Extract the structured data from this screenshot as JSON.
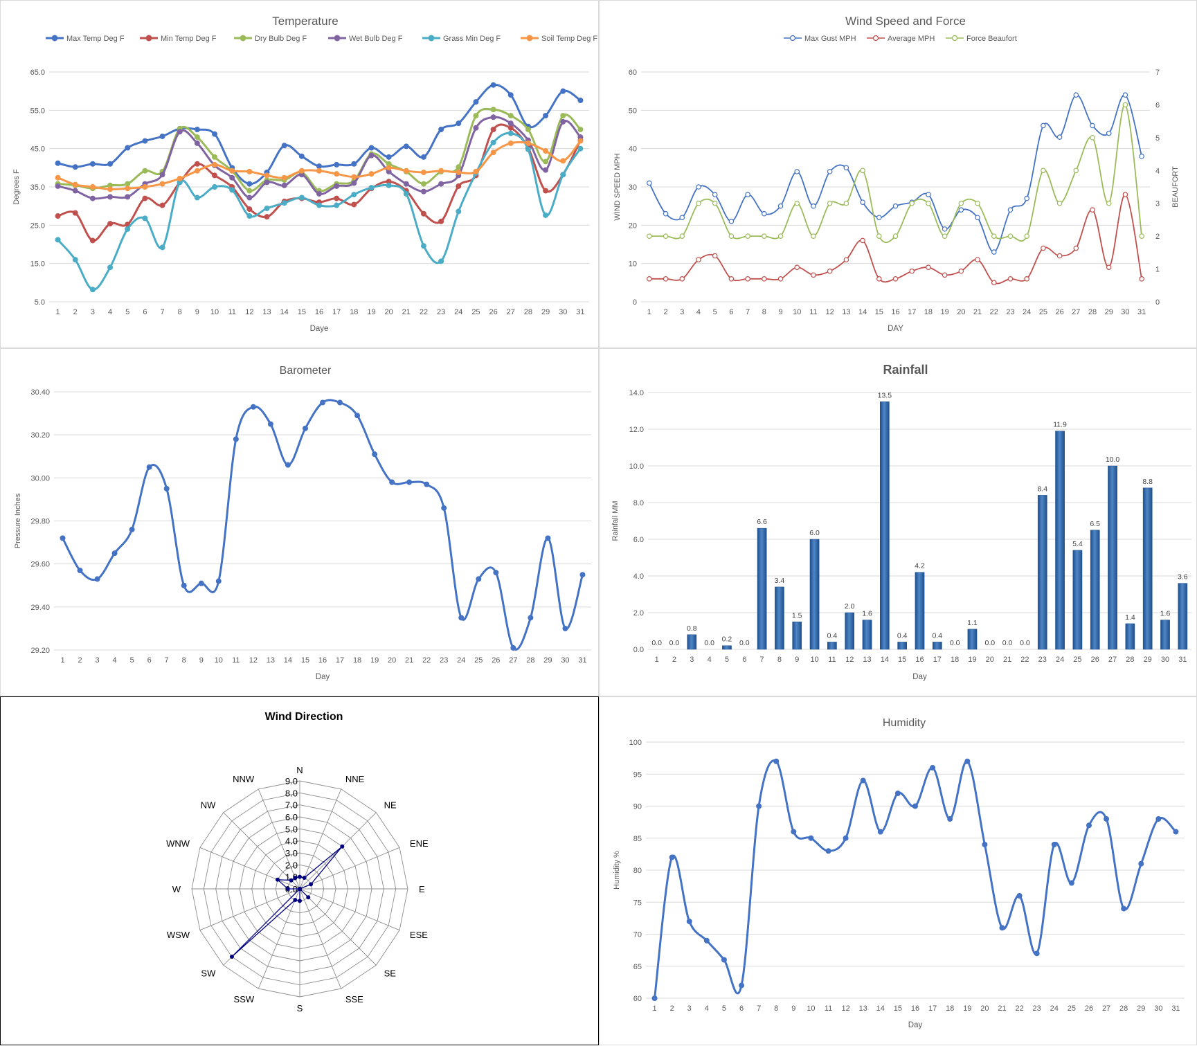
{
  "chart_data": [
    {
      "id": "temperature",
      "type": "line",
      "title": "Temperature",
      "xlabel": "Daye",
      "ylabel": "Degrees F",
      "ylim": [
        5,
        65
      ],
      "yticks": [
        "5.0",
        "15.0",
        "25.0",
        "35.0",
        "45.0",
        "55.0",
        "65.0"
      ],
      "grid": true,
      "legend": "top",
      "categories": [
        "1",
        "2",
        "3",
        "4",
        "5",
        "6",
        "7",
        "8",
        "9",
        "10",
        "11",
        "12",
        "13",
        "14",
        "15",
        "16",
        "17",
        "18",
        "19",
        "20",
        "21",
        "22",
        "23",
        "24",
        "25",
        "26",
        "27",
        "28",
        "29",
        "30",
        "31"
      ],
      "series": [
        {
          "name": "Max Temp Deg F",
          "color": "#4472C4",
          "values": [
            41.2,
            40.2,
            41.0,
            41.0,
            45.2,
            47.0,
            48.2,
            50.2,
            50.0,
            48.8,
            40.0,
            35.8,
            38.8,
            45.8,
            43.0,
            40.4,
            40.8,
            41.0,
            45.2,
            42.8,
            45.6,
            42.8,
            50.0,
            51.6,
            57.2,
            61.6,
            59.0,
            50.8,
            53.6,
            60.0,
            57.6
          ]
        },
        {
          "name": "Min Temp Deg F",
          "color": "#C0504D",
          "values": [
            27.4,
            28.2,
            21.0,
            25.4,
            25.2,
            32.0,
            30.2,
            36.2,
            41.0,
            38.0,
            35.0,
            29.2,
            27.2,
            31.2,
            32.0,
            31.0,
            32.0,
            30.4,
            34.6,
            36.4,
            34.0,
            28.0,
            26.0,
            35.2,
            38.0,
            50.0,
            50.4,
            45.2,
            34.0,
            38.2,
            47.2
          ]
        },
        {
          "name": "Dry Bulb Deg F",
          "color": "#9BBB59",
          "values": [
            35.8,
            35.4,
            34.6,
            35.4,
            35.8,
            39.2,
            39.0,
            50.2,
            48.0,
            42.8,
            39.2,
            34.0,
            36.8,
            36.8,
            38.8,
            34.0,
            35.8,
            36.6,
            43.6,
            41.0,
            39.0,
            35.8,
            39.0,
            40.2,
            53.6,
            55.2,
            53.6,
            50.0,
            41.6,
            53.6,
            50.0
          ]
        },
        {
          "name": "Wet Bulb Deg F",
          "color": "#8064A2",
          "values": [
            35.2,
            34.0,
            32.0,
            32.4,
            32.4,
            35.8,
            38.2,
            49.4,
            46.4,
            40.6,
            37.4,
            32.2,
            36.2,
            35.4,
            38.2,
            33.2,
            35.2,
            36.0,
            43.2,
            39.0,
            35.8,
            33.8,
            35.8,
            38.0,
            50.4,
            53.2,
            51.6,
            47.2,
            39.4,
            52.0,
            48.0
          ]
        },
        {
          "name": "Grass Min Deg F",
          "color": "#4BACC6",
          "values": [
            21.2,
            16.0,
            8.2,
            14.0,
            24.0,
            26.8,
            19.2,
            36.2,
            32.2,
            35.0,
            34.2,
            27.4,
            29.4,
            30.8,
            32.2,
            30.2,
            30.2,
            33.0,
            34.8,
            35.4,
            33.2,
            19.6,
            15.6,
            28.6,
            38.6,
            46.6,
            49.0,
            44.8,
            27.6,
            38.2,
            45.0
          ]
        },
        {
          "name": "Soil Temp Deg F",
          "color": "#F79646",
          "values": [
            37.4,
            35.6,
            35.0,
            34.4,
            34.6,
            35.0,
            35.8,
            37.2,
            39.2,
            40.8,
            39.2,
            39.0,
            38.0,
            37.4,
            39.2,
            39.2,
            38.4,
            37.6,
            38.4,
            40.0,
            39.2,
            38.8,
            39.2,
            38.8,
            39.0,
            44.0,
            46.4,
            46.4,
            44.4,
            41.8,
            47.0
          ]
        }
      ]
    },
    {
      "id": "wind_speed",
      "type": "line",
      "title": "Wind Speed and Force",
      "xlabel": "DAY",
      "ylabel": "WIND SPEED MPH",
      "y2label": "BEAUFORT",
      "ylim": [
        0,
        60
      ],
      "y2lim": [
        0,
        7
      ],
      "yticks": [
        "0",
        "10",
        "20",
        "30",
        "40",
        "50",
        "60"
      ],
      "y2ticks": [
        "0",
        "1",
        "2",
        "3",
        "4",
        "5",
        "6",
        "7"
      ],
      "grid": true,
      "legend": "top",
      "categories": [
        "1",
        "2",
        "3",
        "4",
        "5",
        "6",
        "7",
        "8",
        "9",
        "10",
        "11",
        "12",
        "13",
        "14",
        "15",
        "16",
        "17",
        "18",
        "19",
        "20",
        "21",
        "22",
        "23",
        "24",
        "25",
        "26",
        "27",
        "28",
        "29",
        "30",
        "31"
      ],
      "series": [
        {
          "name": "Max Gust MPH",
          "color": "#4472C4",
          "axis": "left",
          "values": [
            31,
            23,
            22,
            30,
            28,
            21,
            28,
            23,
            25,
            34,
            25,
            34,
            35,
            26,
            22,
            25,
            26,
            28,
            19,
            24,
            22,
            13,
            24,
            27,
            46,
            43,
            54,
            46,
            44,
            54,
            38
          ]
        },
        {
          "name": "Average MPH",
          "color": "#C0504D",
          "axis": "left",
          "values": [
            6,
            6,
            6,
            11,
            12,
            6,
            6,
            6,
            6,
            9,
            7,
            8,
            11,
            16,
            6,
            6,
            8,
            9,
            7,
            8,
            11,
            5,
            6,
            6,
            14,
            12,
            14,
            24,
            9,
            28,
            6
          ]
        },
        {
          "name": "Force Beaufort",
          "color": "#9BBB59",
          "axis": "right",
          "values": [
            2,
            2,
            2,
            3,
            3,
            2,
            2,
            2,
            2,
            3,
            2,
            3,
            3,
            4,
            2,
            2,
            3,
            3,
            2,
            3,
            3,
            2,
            2,
            2,
            4,
            3,
            4,
            5,
            3,
            6,
            2
          ]
        }
      ]
    },
    {
      "id": "barometer",
      "type": "line",
      "title": "Barometer",
      "xlabel": "Day",
      "ylabel": "Pressure Inches",
      "ylim": [
        29.2,
        30.4
      ],
      "yticks": [
        "29.20",
        "29.40",
        "29.60",
        "29.80",
        "30.00",
        "30.20",
        "30.40"
      ],
      "grid": true,
      "categories": [
        "1",
        "2",
        "3",
        "4",
        "5",
        "6",
        "7",
        "8",
        "9",
        "10",
        "11",
        "12",
        "13",
        "14",
        "15",
        "16",
        "17",
        "18",
        "19",
        "20",
        "21",
        "22",
        "23",
        "24",
        "25",
        "26",
        "27",
        "28",
        "29",
        "30",
        "31"
      ],
      "series": [
        {
          "name": "",
          "color": "#4472C4",
          "values": [
            29.72,
            29.57,
            29.53,
            29.65,
            29.76,
            30.05,
            29.95,
            29.5,
            29.51,
            29.52,
            30.18,
            30.33,
            30.25,
            30.06,
            30.23,
            30.35,
            30.35,
            30.29,
            30.11,
            29.98,
            29.98,
            29.97,
            29.86,
            29.35,
            29.53,
            29.56,
            29.21,
            29.35,
            29.72,
            29.3,
            29.55
          ]
        }
      ]
    },
    {
      "id": "rainfall",
      "type": "bar",
      "title": "Rainfall",
      "xlabel": "Day",
      "ylabel": "Rainfall MM",
      "ylim": [
        0,
        14
      ],
      "yticks": [
        "0.0",
        "2.0",
        "4.0",
        "6.0",
        "8.0",
        "10.0",
        "12.0",
        "14.0"
      ],
      "grid": true,
      "categories": [
        "1",
        "2",
        "3",
        "4",
        "5",
        "6",
        "7",
        "8",
        "9",
        "10",
        "11",
        "12",
        "13",
        "14",
        "15",
        "16",
        "17",
        "18",
        "19",
        "20",
        "21",
        "22",
        "23",
        "24",
        "25",
        "26",
        "27",
        "28",
        "29",
        "30",
        "31"
      ],
      "values": [
        0.0,
        0.0,
        0.8,
        0.0,
        0.2,
        0.0,
        6.6,
        3.4,
        1.5,
        6.0,
        0.4,
        2.0,
        1.6,
        13.5,
        0.4,
        4.2,
        0.4,
        0.0,
        1.1,
        0.0,
        0.0,
        0.0,
        8.4,
        11.9,
        5.4,
        6.5,
        10.0,
        1.4,
        8.8,
        1.6,
        3.6
      ],
      "labels": [
        "0.0",
        "0.0",
        "0.8",
        "0.0",
        "0.2",
        "0.0",
        "6.6",
        "3.4",
        "1.5",
        "6.0",
        "0.4",
        "2.0",
        "1.6",
        "13.5",
        "0.4",
        "4.2",
        "0.4",
        "0.0",
        "1.1",
        "0.0",
        "0.0",
        "0.0",
        "8.4",
        "11.9",
        "5.4",
        "6.5",
        "10.0",
        "1.4",
        "8.8",
        "1.6",
        "3.6"
      ],
      "color": "#3A6FB5"
    },
    {
      "id": "wind_direction",
      "type": "radar",
      "title": "Wind Direction",
      "rlim": [
        0,
        9
      ],
      "rticks": [
        "0.0",
        "1.0",
        "2.0",
        "3.0",
        "4.0",
        "5.0",
        "6.0",
        "7.0",
        "8.0",
        "9.0"
      ],
      "categories": [
        "N",
        "NNE",
        "NE",
        "ENE",
        "E",
        "ESE",
        "SE",
        "SSE",
        "S",
        "SSW",
        "SW",
        "WSW",
        "W",
        "WNW",
        "NW",
        "NNW"
      ],
      "values": [
        1,
        1,
        5,
        1,
        0,
        0,
        1,
        0,
        1,
        1,
        8,
        0,
        1,
        2,
        1,
        1
      ],
      "color": "#000080"
    },
    {
      "id": "humidity",
      "type": "line",
      "title": "Humidity",
      "xlabel": "Day",
      "ylabel": "Humidity %",
      "ylim": [
        60,
        100
      ],
      "yticks": [
        "60",
        "65",
        "70",
        "75",
        "80",
        "85",
        "90",
        "95",
        "100"
      ],
      "grid": true,
      "categories": [
        "1",
        "2",
        "3",
        "4",
        "5",
        "6",
        "7",
        "8",
        "9",
        "10",
        "11",
        "12",
        "13",
        "14",
        "15",
        "16",
        "17",
        "18",
        "19",
        "20",
        "21",
        "22",
        "23",
        "24",
        "25",
        "26",
        "27",
        "28",
        "29",
        "30",
        "31"
      ],
      "series": [
        {
          "name": "",
          "color": "#4472C4",
          "values": [
            60,
            82,
            72,
            69,
            66,
            62,
            90,
            97,
            86,
            85,
            83,
            85,
            94,
            86,
            92,
            90,
            96,
            88,
            97,
            84,
            71,
            76,
            67,
            84,
            78,
            87,
            88,
            74,
            81,
            88,
            86
          ]
        }
      ]
    }
  ]
}
